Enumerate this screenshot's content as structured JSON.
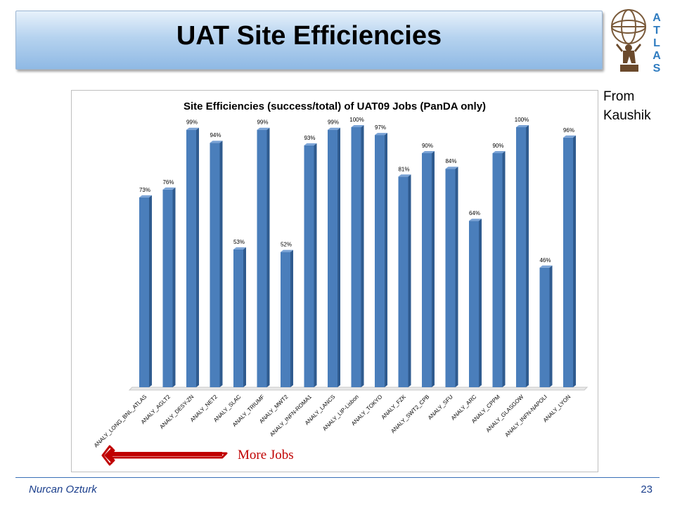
{
  "slide": {
    "title": "UAT Site Efficiencies",
    "note": "From\nKaushik",
    "author": "Nurcan Ozturk",
    "page": "23",
    "logo_letters": [
      "A",
      "T",
      "L",
      "A",
      "S"
    ],
    "arrow_label": "More Jobs"
  },
  "colors": {
    "bar": "#4a7ebb",
    "bar_dark": "#2f5b8f",
    "arrow": "#c00000",
    "banner": "#a9c9ea",
    "footer": "#1a3e8c"
  },
  "chart_data": {
    "type": "bar",
    "title": "Site Efficiencies (success/total) of UAT09 Jobs (PanDA only)",
    "categories": [
      "ANALY_LONG_BNL_ATLAS",
      "ANALY_AGLT2",
      "ANALY_DESY-ZN",
      "ANALY_NET2",
      "ANALY_SLAC",
      "ANALY_TRIUMF",
      "ANALY_MWT2",
      "ANALY_INFN-ROMA1",
      "ANALY_LANCS",
      "ANALY_LIP-Lisbon",
      "ANALY_TOKYO",
      "ANALY_FZK",
      "ANALY_SWT2_CPB",
      "ANALY_SFU",
      "ANALY_ARC",
      "ANALY_CPPM",
      "ANALY_GLASGOW",
      "ANALY_INFN-NAPOLI",
      "ANALY_LYON"
    ],
    "values": [
      73,
      76,
      99,
      94,
      53,
      99,
      52,
      93,
      99,
      100,
      97,
      81,
      90,
      84,
      64,
      90,
      100,
      46,
      96
    ],
    "value_labels": [
      "73%",
      "76%",
      "99%",
      "94%",
      "53%",
      "99%",
      "52%",
      "93%",
      "99%",
      "100%",
      "97%",
      "81%",
      "90%",
      "84%",
      "64%",
      "90%",
      "100%",
      "46%",
      "96%"
    ],
    "ylim": [
      0,
      100
    ],
    "grid": false,
    "legend": "none"
  }
}
